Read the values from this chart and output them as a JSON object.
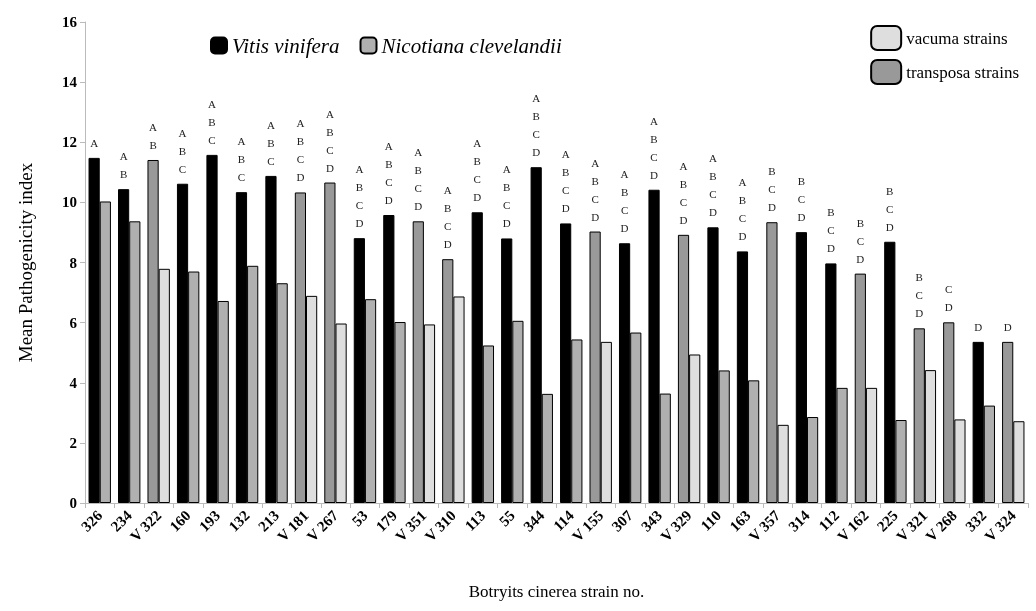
{
  "chart_data": {
    "type": "bar",
    "xlabel": "Botryits cinerea strain no.",
    "ylabel": "Mean Pathogenicity index",
    "categories": [
      "326",
      "234",
      "V 322",
      "160",
      "193",
      "132",
      "213",
      "V 181",
      "V 267",
      "53",
      "179",
      "V 351",
      "V 310",
      "113",
      "55",
      "344",
      "114",
      "V 155",
      "307",
      "343",
      "V 329",
      "110",
      "163",
      "V 357",
      "314",
      "112",
      "V 162",
      "225",
      "V 321",
      "V 268",
      "332",
      "V 324"
    ],
    "series": [
      {
        "name": "Vitis vinifera",
        "color": "#000000",
        "values": [
          11.48,
          10.44,
          null,
          10.62,
          11.58,
          10.34,
          10.88,
          null,
          null,
          8.81,
          9.58,
          null,
          null,
          9.67,
          8.8,
          11.17,
          9.3,
          null,
          8.64,
          10.42,
          null,
          9.17,
          8.37,
          null,
          9.01,
          7.97,
          null,
          8.69,
          null,
          null,
          5.36,
          null
        ]
      },
      {
        "name": "Nicotiana clevelandii",
        "color": "#b0b0b0",
        "values": [
          10.03,
          9.37,
          null,
          7.7,
          6.72,
          7.89,
          7.31,
          null,
          null,
          6.78,
          6.02,
          null,
          null,
          5.24,
          6.06,
          3.63,
          5.44,
          null,
          5.67,
          3.64,
          null,
          4.41,
          4.08,
          null,
          2.86,
          3.83,
          null,
          2.76,
          null,
          null,
          3.24,
          null
        ]
      },
      {
        "name": "transposa strains",
        "color": "#999999",
        "values": [
          null,
          null,
          11.41,
          null,
          null,
          null,
          null,
          10.33,
          10.66,
          null,
          null,
          9.37,
          8.11,
          null,
          null,
          null,
          null,
          9.03,
          null,
          null,
          8.92,
          null,
          null,
          9.34,
          null,
          null,
          7.63,
          null,
          5.81,
          6.01,
          null,
          5.36
        ]
      },
      {
        "name": "vacuma strains",
        "color": "#dedede",
        "values": [
          null,
          null,
          7.79,
          null,
          null,
          null,
          null,
          6.89,
          5.97,
          null,
          null,
          5.94,
          6.87,
          null,
          null,
          null,
          null,
          5.36,
          null,
          null,
          4.94,
          null,
          null,
          2.6,
          null,
          null,
          3.83,
          null,
          4.42,
          2.78,
          null,
          2.72
        ]
      }
    ],
    "ylim": [
      0,
      16
    ],
    "yticks": [
      0,
      2,
      4,
      6,
      8,
      10,
      12,
      14,
      16
    ],
    "grid": false,
    "legend": "top",
    "annotations": [
      {
        "text": "A",
        "x": "326",
        "y": 11.48
      },
      {
        "text": "A\nB",
        "x": "234",
        "y": 10.44
      },
      {
        "text": "A\nB",
        "x": "V 322",
        "y": 11.41
      },
      {
        "text": "A\nB\nC",
        "x": "160",
        "y": 10.62
      },
      {
        "text": "A\nB\nC",
        "x": "193",
        "y": 11.58
      },
      {
        "text": "A\nB\nC",
        "x": "132",
        "y": 10.34
      },
      {
        "text": "A\nB\nC",
        "x": "213",
        "y": 10.88
      },
      {
        "text": "A\nB\nC\nD",
        "x": "V 181",
        "y": 10.33
      },
      {
        "text": "A\nB\nC\nD",
        "x": "V 267",
        "y": 10.66
      },
      {
        "text": "A\nB\nC\nD",
        "x": "53",
        "y": 8.81
      },
      {
        "text": "A\nB\nC\nD",
        "x": "179",
        "y": 9.58
      },
      {
        "text": "A\nB\nC\nD",
        "x": "V 351",
        "y": 9.37
      },
      {
        "text": "A\nB\nC\nD",
        "x": "V 310",
        "y": 8.11
      },
      {
        "text": "A\nB\nC\nD",
        "x": "113",
        "y": 9.67
      },
      {
        "text": "A\nB\nC\nD",
        "x": "55",
        "y": 8.8
      },
      {
        "text": "A\nB\nC\nD",
        "x": "344",
        "y": 11.17
      },
      {
        "text": "A\nB\nC\nD",
        "x": "114",
        "y": 9.3
      },
      {
        "text": "A\nB\nC\nD",
        "x": "V 155",
        "y": 9.03
      },
      {
        "text": "A\nB\nC\nD",
        "x": "307",
        "y": 8.64
      },
      {
        "text": "A\nB\nC\nD",
        "x": "343",
        "y": 10.42
      },
      {
        "text": "A\nB\nC\nD",
        "x": "V 329",
        "y": 8.92
      },
      {
        "text": "A\nB\nC\nD",
        "x": "110",
        "y": 9.17
      },
      {
        "text": "A\nB\nC\nD",
        "x": "163",
        "y": 8.37
      },
      {
        "text": "B\nC\nD",
        "x": "V 357",
        "y": 9.34
      },
      {
        "text": "B\nC\nD",
        "x": "314",
        "y": 9.01
      },
      {
        "text": "B\nC\nD",
        "x": "112",
        "y": 7.97
      },
      {
        "text": "B\nC\nD",
        "x": "V 162",
        "y": 7.63
      },
      {
        "text": "B\nC\nD",
        "x": "225",
        "y": 8.69
      },
      {
        "text": "B\nC\nD",
        "x": "V 321",
        "y": 5.81
      },
      {
        "text": "C\nD",
        "x": "V 268",
        "y": 6.01
      },
      {
        "text": "D",
        "x": "332",
        "y": 5.36
      },
      {
        "text": "D",
        "x": "V 324",
        "y": 5.36
      }
    ]
  }
}
